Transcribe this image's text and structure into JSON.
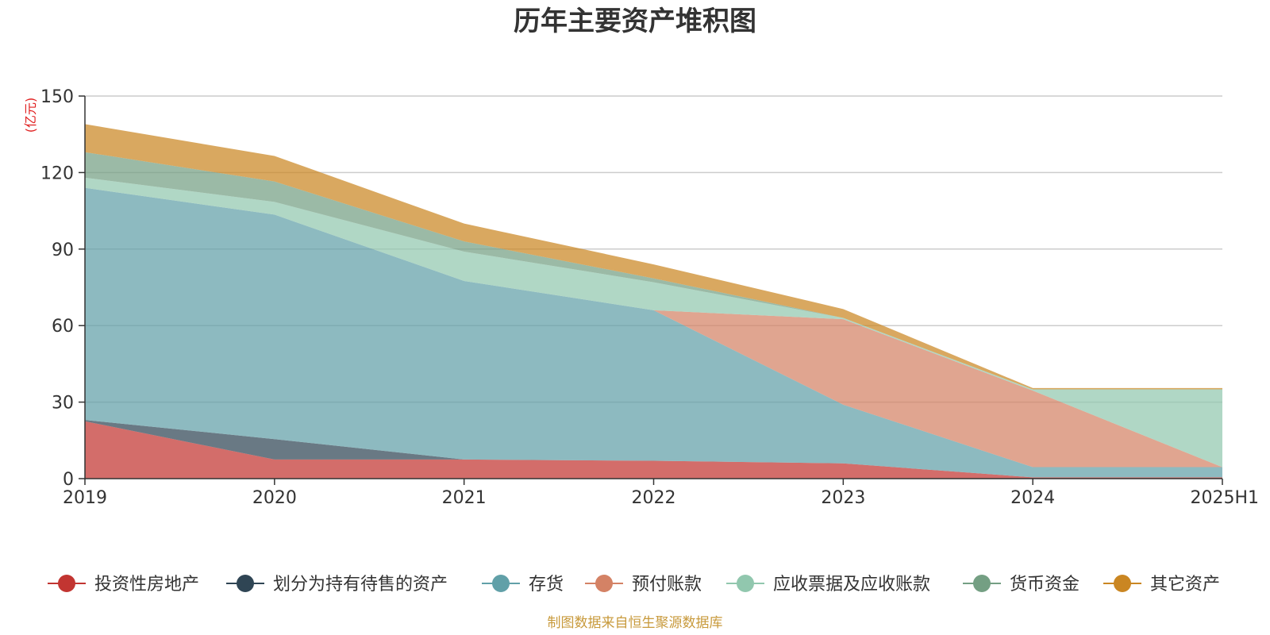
{
  "chart_data": {
    "type": "area",
    "stacked": true,
    "title": "历年主要资产堆积图",
    "unit": "(亿元)",
    "x": [
      "2019",
      "2020",
      "2021",
      "2022",
      "2023",
      "2024",
      "2025H1"
    ],
    "ylim": [
      0,
      150
    ],
    "yticks": [
      0,
      30,
      60,
      90,
      120,
      150
    ],
    "grid": true,
    "legend_position": "bottom",
    "series": [
      {
        "name": "投资性房地产",
        "color": "#c23531",
        "values": [
          22.5,
          7.5,
          7.5,
          7.0,
          6.0,
          0.5,
          0.5
        ]
      },
      {
        "name": "划分为持有待售的资产",
        "color": "#2f4554",
        "values": [
          0.5,
          8.0,
          0.0,
          0.0,
          0.0,
          0.0,
          0.0
        ]
      },
      {
        "name": "存货",
        "color": "#61a0a8",
        "values": [
          91.0,
          88.0,
          70.0,
          59.0,
          23.0,
          4.0,
          4.0
        ]
      },
      {
        "name": "预付账款",
        "color": "#d48265",
        "values": [
          0.0,
          0.0,
          0.0,
          0.0,
          33.5,
          30.0,
          0.0
        ]
      },
      {
        "name": "应收票据及应收账款",
        "color": "#91c7ae",
        "values": [
          4.0,
          5.0,
          11.5,
          11.0,
          0.5,
          0.5,
          30.5
        ]
      },
      {
        "name": "货币资金",
        "color": "#749f83",
        "values": [
          10.0,
          8.0,
          4.0,
          1.5,
          0.0,
          0.0,
          0.0
        ]
      },
      {
        "name": "其它资产",
        "color": "#ca8622",
        "values": [
          11.0,
          10.0,
          7.0,
          5.5,
          3.5,
          0.5,
          0.5
        ]
      }
    ]
  },
  "source_note": "制图数据来自恒生聚源数据库"
}
